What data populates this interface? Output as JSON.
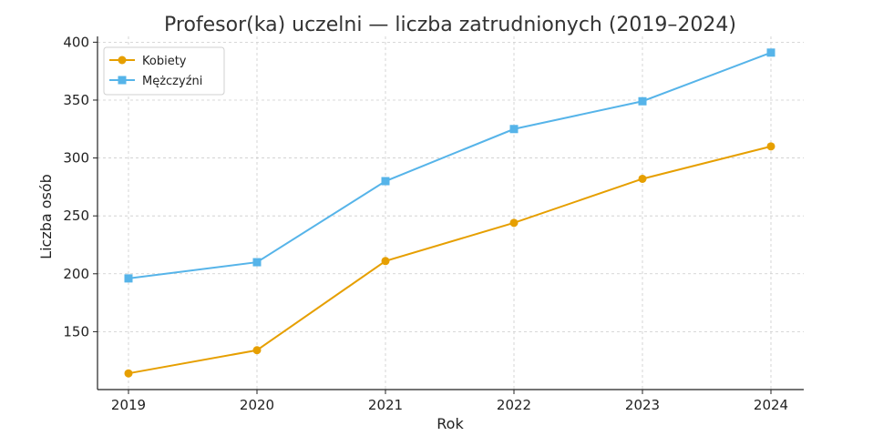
{
  "chart_data": {
    "type": "line",
    "title": "Profesor(ka) uczelni — liczba zatrudnionych (2019–2024)",
    "xlabel": "Rok",
    "ylabel": "Liczba osób",
    "x": [
      2019,
      2020,
      2021,
      2022,
      2023,
      2024
    ],
    "x_tick_labels": [
      "2019",
      "2020",
      "2021",
      "2022",
      "2023",
      "2024"
    ],
    "ylim": [
      100,
      405
    ],
    "y_ticks": [
      150,
      200,
      250,
      300,
      350,
      400
    ],
    "y_tick_labels": [
      "150",
      "200",
      "250",
      "300",
      "350",
      "400"
    ],
    "grid": true,
    "legend_position": "top-left",
    "series": [
      {
        "name": "Kobiety",
        "values": [
          114,
          134,
          211,
          244,
          282,
          310
        ],
        "color": "#E69F00",
        "marker": "circle"
      },
      {
        "name": "Mężczyźni",
        "values": [
          196,
          210,
          280,
          325,
          349,
          391
        ],
        "color": "#56B4E9",
        "marker": "square"
      }
    ]
  }
}
